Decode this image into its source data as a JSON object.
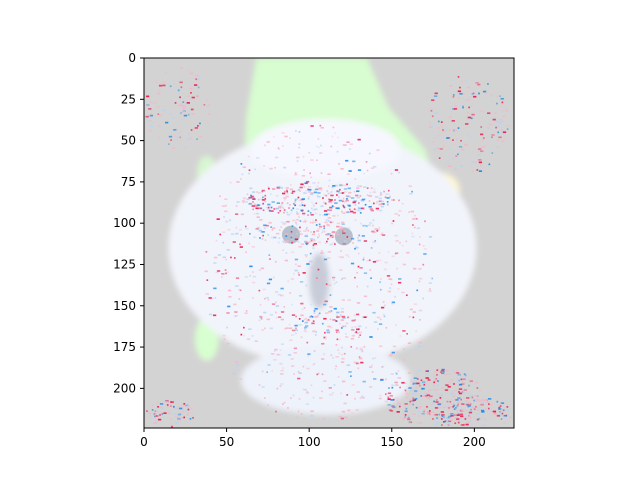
{
  "chart_data": {
    "type": "heatmap",
    "title": "",
    "xlabel": "",
    "ylabel": "",
    "xlim": [
      0,
      224
    ],
    "ylim": [
      224,
      0
    ],
    "x_ticks": [
      0,
      50,
      100,
      150,
      200
    ],
    "y_ticks": [
      0,
      25,
      50,
      75,
      100,
      125,
      150,
      175,
      200
    ],
    "x_tick_labels": [
      "0",
      "50",
      "100",
      "150",
      "200"
    ],
    "y_tick_labels": [
      "0",
      "25",
      "50",
      "75",
      "100",
      "125",
      "150",
      "175",
      "200"
    ],
    "grid": false,
    "legend": "none",
    "image_description_colors": {
      "background": "#d3d3d3",
      "face": "#f2f4fb",
      "positive_highlight": "#e8174a",
      "negative_highlight": "#1e88e5",
      "green_regions": "#d8ffd0"
    }
  }
}
